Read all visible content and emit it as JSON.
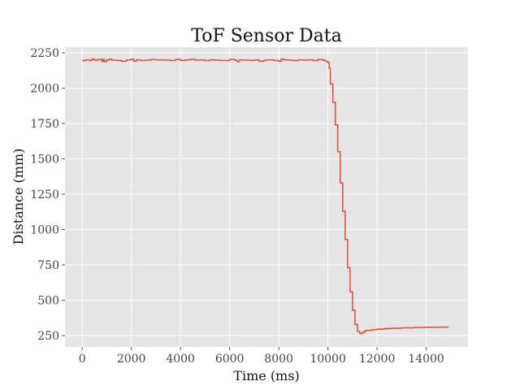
{
  "chart_data": {
    "type": "line",
    "title": "ToF Sensor Data",
    "xlabel": "Time (ms)",
    "ylabel": "Distance (mm)",
    "xlim": [
      -700,
      15700
    ],
    "ylim": [
      170,
      2290
    ],
    "xticks": [
      0,
      2000,
      4000,
      6000,
      8000,
      10000,
      12000,
      14000
    ],
    "yticks": [
      250,
      500,
      750,
      1000,
      1250,
      1500,
      1750,
      2000,
      2250
    ],
    "grid": true,
    "colors": {
      "line": "#e24a33",
      "plot_bg": "#e5e5e5",
      "grid": "#ffffff"
    },
    "series": [
      {
        "x": [
          0,
          150,
          300,
          400,
          500,
          650,
          800,
          850,
          900,
          1000,
          1100,
          1200,
          1400,
          1600,
          1800,
          2000,
          2100,
          2200,
          2400,
          2600,
          2800,
          3000,
          3200,
          3400,
          3600,
          3800,
          4000,
          4200,
          4400,
          4600,
          4800,
          5000,
          5200,
          5400,
          5600,
          5800,
          6000,
          6200,
          6300,
          6400,
          6600,
          6800,
          7000,
          7200,
          7400,
          7600,
          7800,
          8000,
          8100,
          8200,
          8400,
          8600,
          8800,
          9000,
          9200,
          9400,
          9600,
          9800,
          9900,
          10000,
          10050,
          10100,
          10200,
          10300,
          10400,
          10500,
          10600,
          10700,
          10800,
          10900,
          11000,
          11100,
          11200,
          11300,
          11400,
          11500,
          11600,
          11800,
          12000,
          12300,
          12600,
          13000,
          13500,
          14000,
          14500,
          14900
        ],
        "y": [
          2195,
          2200,
          2196,
          2205,
          2198,
          2202,
          2190,
          2203,
          2188,
          2200,
          2205,
          2198,
          2196,
          2190,
          2200,
          2205,
          2190,
          2200,
          2195,
          2198,
          2203,
          2200,
          2200,
          2198,
          2195,
          2203,
          2196,
          2200,
          2203,
          2198,
          2200,
          2195,
          2200,
          2198,
          2196,
          2195,
          2203,
          2198,
          2188,
          2200,
          2198,
          2196,
          2200,
          2190,
          2198,
          2200,
          2195,
          2190,
          2205,
          2200,
          2198,
          2195,
          2200,
          2198,
          2200,
          2195,
          2203,
          2196,
          2190,
          2180,
          2140,
          2030,
          1900,
          1740,
          1550,
          1330,
          1130,
          930,
          730,
          560,
          430,
          330,
          280,
          265,
          275,
          285,
          288,
          292,
          296,
          300,
          302,
          305,
          308,
          309,
          310,
          309
        ]
      }
    ]
  }
}
